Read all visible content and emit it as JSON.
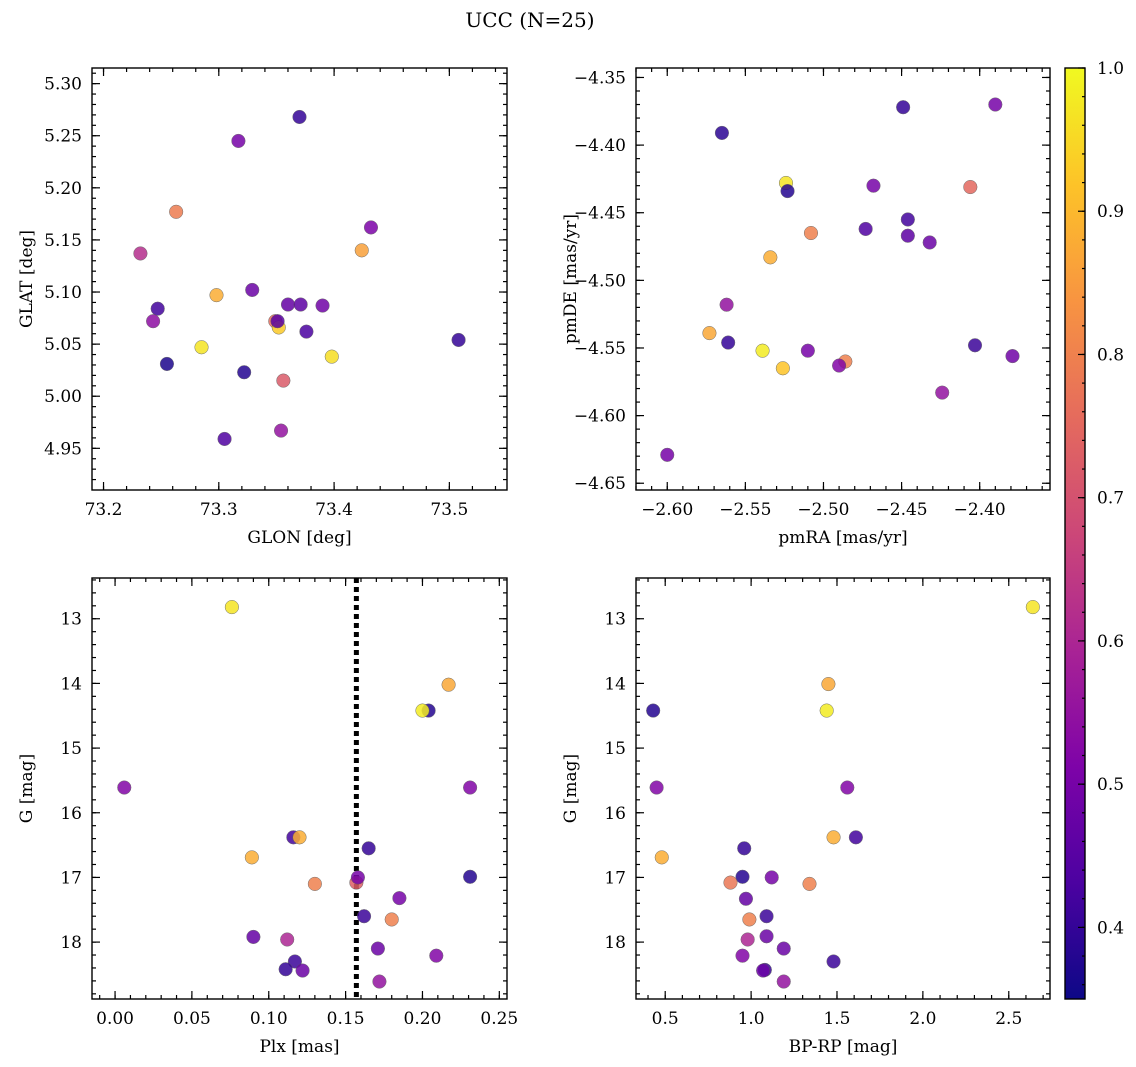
{
  "figure": {
    "title": "UCC (N=25)"
  },
  "colorbar": {
    "min": 0.35,
    "max": 1.0,
    "ticks": [
      0.4,
      0.5,
      0.6,
      0.7,
      0.8,
      0.9,
      1.0
    ],
    "tick_labels": [
      "0.4",
      "0.5",
      "0.6",
      "0.7",
      "0.8",
      "0.9",
      "1.0"
    ],
    "colormap": "plasma"
  },
  "chart_data": [
    {
      "type": "scatter",
      "xlabel": "GLON [deg]",
      "ylabel": "GLAT [deg]",
      "xlim": [
        73.19,
        73.55
      ],
      "ylim": [
        4.91,
        5.315
      ],
      "invert_y": false,
      "xticks": [
        73.2,
        73.3,
        73.4,
        73.5
      ],
      "xtick_labels": [
        "73.2",
        "73.3",
        "73.4",
        "73.5"
      ],
      "yticks": [
        4.95,
        5.0,
        5.05,
        5.1,
        5.15,
        5.2,
        5.25,
        5.3
      ],
      "ytick_labels": [
        "4.95",
        "5.00",
        "5.05",
        "5.10",
        "5.15",
        "5.20",
        "5.25",
        "5.30"
      ],
      "x": [
        73.37,
        73.317,
        73.263,
        73.232,
        73.432,
        73.424,
        73.298,
        73.329,
        73.247,
        73.243,
        73.36,
        73.371,
        73.39,
        73.349,
        73.352,
        73.376,
        73.285,
        73.398,
        73.508,
        73.255,
        73.322,
        73.356,
        73.305,
        73.354,
        73.351
      ],
      "y": [
        5.268,
        5.245,
        5.177,
        5.137,
        5.162,
        5.14,
        5.097,
        5.102,
        5.084,
        5.072,
        5.088,
        5.088,
        5.087,
        5.072,
        5.066,
        5.062,
        5.047,
        5.038,
        5.054,
        5.031,
        5.023,
        5.015,
        4.959,
        4.967,
        5.072
      ],
      "c": [
        0.4,
        0.5,
        0.79,
        0.62,
        0.51,
        0.86,
        0.88,
        0.48,
        0.42,
        0.54,
        0.47,
        0.46,
        0.49,
        0.76,
        0.93,
        0.43,
        0.97,
        0.96,
        0.4,
        0.37,
        0.38,
        0.72,
        0.44,
        0.55,
        0.45
      ]
    },
    {
      "type": "scatter",
      "xlabel": "pmRA [mas/yr]",
      "ylabel": "pmDE [mas/yr]",
      "xlim": [
        -2.62,
        -2.355
      ],
      "ylim": [
        -4.655,
        -4.343
      ],
      "invert_y": false,
      "xticks": [
        -2.6,
        -2.55,
        -2.5,
        -2.45,
        -2.4
      ],
      "xtick_labels": [
        "−2.60",
        "−2.55",
        "−2.50",
        "−2.45",
        "−2.40"
      ],
      "yticks": [
        -4.65,
        -4.6,
        -4.55,
        -4.5,
        -4.45,
        -4.4,
        -4.35
      ],
      "ytick_labels": [
        "−4.65",
        "−4.60",
        "−4.55",
        "−4.50",
        "−4.45",
        "−4.40",
        "−4.35"
      ],
      "x": [
        -2.565,
        -2.449,
        -2.39,
        -2.524,
        -2.523,
        -2.468,
        -2.406,
        -2.446,
        -2.446,
        -2.473,
        -2.508,
        -2.432,
        -2.534,
        -2.562,
        -2.573,
        -2.561,
        -2.539,
        -2.51,
        -2.526,
        -2.486,
        -2.49,
        -2.403,
        -2.379,
        -2.424,
        -2.6
      ],
      "y": [
        -4.391,
        -4.372,
        -4.37,
        -4.428,
        -4.434,
        -4.43,
        -4.431,
        -4.455,
        -4.467,
        -4.462,
        -4.465,
        -4.472,
        -4.483,
        -4.518,
        -4.539,
        -4.546,
        -4.552,
        -4.552,
        -4.565,
        -4.56,
        -4.563,
        -4.548,
        -4.556,
        -4.583,
        -4.629
      ],
      "c": [
        0.39,
        0.4,
        0.5,
        0.97,
        0.38,
        0.5,
        0.75,
        0.42,
        0.46,
        0.44,
        0.8,
        0.48,
        0.88,
        0.55,
        0.87,
        0.4,
        0.98,
        0.5,
        0.92,
        0.8,
        0.52,
        0.41,
        0.49,
        0.55,
        0.5
      ]
    },
    {
      "type": "scatter",
      "xlabel": "Plx [mas]",
      "ylabel": "G [mag]",
      "xlim": [
        -0.015,
        0.255
      ],
      "ylim": [
        18.88,
        12.37
      ],
      "invert_y": true,
      "vline": {
        "x": 0.157,
        "style": "dotted"
      },
      "xticks": [
        0.0,
        0.05,
        0.1,
        0.15,
        0.2,
        0.25
      ],
      "xtick_labels": [
        "0.00",
        "0.05",
        "0.10",
        "0.15",
        "0.20",
        "0.25"
      ],
      "yticks": [
        13,
        14,
        15,
        16,
        17,
        18
      ],
      "ytick_labels": [
        "13",
        "14",
        "15",
        "16",
        "17",
        "18"
      ],
      "x": [
        0.076,
        0.217,
        0.204,
        0.2,
        0.006,
        0.231,
        0.116,
        0.12,
        0.089,
        0.165,
        0.231,
        0.13,
        0.157,
        0.158,
        0.185,
        0.162,
        0.18,
        0.09,
        0.112,
        0.171,
        0.209,
        0.117,
        0.111,
        0.122,
        0.172
      ],
      "y": [
        12.82,
        14.02,
        14.42,
        14.42,
        15.61,
        15.61,
        16.38,
        16.38,
        16.69,
        16.55,
        16.99,
        17.1,
        17.08,
        17.0,
        17.32,
        17.6,
        17.65,
        17.92,
        17.96,
        18.1,
        18.21,
        18.3,
        18.42,
        18.44,
        18.61
      ],
      "c": [
        0.97,
        0.87,
        0.38,
        0.98,
        0.52,
        0.52,
        0.42,
        0.88,
        0.88,
        0.4,
        0.38,
        0.8,
        0.73,
        0.5,
        0.5,
        0.41,
        0.8,
        0.47,
        0.6,
        0.48,
        0.52,
        0.41,
        0.4,
        0.48,
        0.55
      ]
    },
    {
      "type": "scatter",
      "xlabel": "BP-RP [mag]",
      "ylabel": "G [mag]",
      "xlim": [
        0.33,
        2.74
      ],
      "ylim": [
        18.88,
        12.37
      ],
      "invert_y": true,
      "xticks": [
        0.5,
        1.0,
        1.5,
        2.0,
        2.5
      ],
      "xtick_labels": [
        "0.5",
        "1.0",
        "1.5",
        "2.0",
        "2.5"
      ],
      "yticks": [
        13,
        14,
        15,
        16,
        17,
        18
      ],
      "ytick_labels": [
        "13",
        "14",
        "15",
        "16",
        "17",
        "18"
      ],
      "x": [
        2.64,
        1.45,
        0.43,
        1.44,
        0.45,
        1.56,
        1.61,
        1.48,
        0.48,
        0.96,
        0.95,
        0.88,
        1.12,
        1.34,
        0.97,
        1.09,
        0.99,
        1.09,
        0.98,
        1.19,
        0.95,
        1.48,
        1.08,
        1.07,
        1.19
      ],
      "y": [
        12.82,
        14.01,
        14.42,
        14.42,
        15.61,
        15.61,
        16.38,
        16.38,
        16.69,
        16.55,
        16.99,
        17.08,
        17.0,
        17.1,
        17.33,
        17.6,
        17.65,
        17.91,
        17.96,
        18.1,
        18.21,
        18.3,
        18.43,
        18.44,
        18.61
      ],
      "c": [
        0.97,
        0.87,
        0.38,
        0.98,
        0.52,
        0.52,
        0.42,
        0.88,
        0.88,
        0.4,
        0.38,
        0.78,
        0.5,
        0.8,
        0.47,
        0.41,
        0.8,
        0.48,
        0.6,
        0.48,
        0.52,
        0.41,
        0.4,
        0.48,
        0.55
      ]
    }
  ]
}
